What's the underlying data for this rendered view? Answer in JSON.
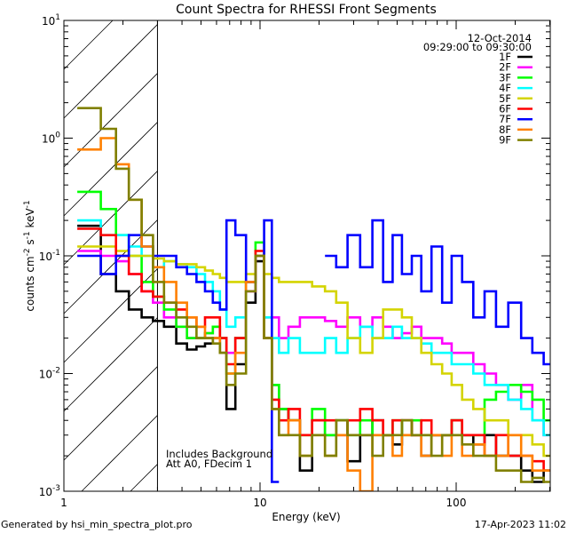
{
  "chart_data": {
    "type": "line",
    "title": "Count Spectra for RHESSI Front Segments",
    "xlabel": "Energy (keV)",
    "ylabel": {
      "base": "counts cm",
      "e1": "-2",
      "mid": " s",
      "e2": "-1",
      "mid2": " keV",
      "e3": "-1"
    },
    "xscale": "log",
    "yscale": "log",
    "xlim": [
      1,
      300
    ],
    "ylim": [
      0.001,
      10
    ],
    "x_ticks": [
      {
        "v": 1,
        "label": "1"
      },
      {
        "v": 10,
        "label": "10"
      },
      {
        "v": 100,
        "label": "100"
      }
    ],
    "y_ticks": [
      {
        "v": 10,
        "base": "10",
        "exp": "1"
      },
      {
        "v": 1,
        "base": "10",
        "exp": "0"
      },
      {
        "v": 0.1,
        "base": "10",
        "exp": "-1"
      },
      {
        "v": 0.01,
        "base": "10",
        "exp": "-2"
      },
      {
        "v": 0.001,
        "base": "10",
        "exp": "-3"
      }
    ],
    "hatched_region_keV": [
      1,
      3
    ],
    "date": "12-Oct-2014",
    "time_range": "09:29:00 to 09:30:00",
    "annotations": [
      "Includes Background",
      "Att A0, FDecim 1"
    ],
    "legend_position": "top-right",
    "x": [
      1.4,
      1.7,
      2.0,
      2.3,
      2.7,
      3.0,
      3.5,
      4,
      4.5,
      5,
      5.5,
      6,
      6.5,
      7,
      8,
      9,
      10,
      11,
      12,
      13,
      15,
      17,
      20,
      23,
      26,
      30,
      35,
      40,
      45,
      50,
      56,
      63,
      70,
      80,
      90,
      100,
      115,
      130,
      150,
      170,
      200,
      230,
      260,
      300
    ],
    "series": [
      {
        "name": "1F",
        "color": "#000000",
        "values": [
          0.18,
          0.07,
          0.05,
          0.035,
          0.03,
          0.028,
          0.025,
          0.018,
          0.016,
          0.017,
          0.018,
          0.02,
          0.015,
          0.005,
          0.012,
          0.04,
          0.09,
          0.02,
          0.008,
          0.005,
          0.004,
          0.0015,
          0.004,
          0.003,
          0.004,
          0.0018,
          0.003,
          0.004,
          0.003,
          0.0025,
          0.004,
          0.003,
          0.002,
          0.003,
          0.003,
          0.004,
          0.003,
          0.0025,
          0.003,
          0.002,
          0.002,
          0.0015,
          0.0012,
          0.0015
        ]
      },
      {
        "name": "2F",
        "color": "#ff00ff",
        "values": [
          0.11,
          0.1,
          0.09,
          0.07,
          0.05,
          0.04,
          0.03,
          0.025,
          0.02,
          0.02,
          0.022,
          0.025,
          0.02,
          0.015,
          0.02,
          0.05,
          0.1,
          0.03,
          0.03,
          0.02,
          0.025,
          0.03,
          0.03,
          0.028,
          0.025,
          0.03,
          0.025,
          0.03,
          0.025,
          0.02,
          0.022,
          0.025,
          0.02,
          0.02,
          0.018,
          0.015,
          0.015,
          0.012,
          0.01,
          0.008,
          0.006,
          0.008,
          0.004,
          0.003
        ]
      },
      {
        "name": "3F",
        "color": "#00ff00",
        "values": [
          0.35,
          0.25,
          0.15,
          0.1,
          0.06,
          0.045,
          0.035,
          0.025,
          0.02,
          0.02,
          0.022,
          0.025,
          0.02,
          0.01,
          0.02,
          0.06,
          0.13,
          0.02,
          0.008,
          0.005,
          0.004,
          0.003,
          0.005,
          0.003,
          0.004,
          0.003,
          0.004,
          0.003,
          0.003,
          0.004,
          0.003,
          0.004,
          0.003,
          0.003,
          0.003,
          0.004,
          0.003,
          0.003,
          0.006,
          0.007,
          0.008,
          0.007,
          0.006,
          0.004
        ]
      },
      {
        "name": "4F",
        "color": "#00ffff",
        "values": [
          0.2,
          0.15,
          0.15,
          0.12,
          0.1,
          0.08,
          0.09,
          0.085,
          0.08,
          0.07,
          0.06,
          0.05,
          0.035,
          0.025,
          0.03,
          0.06,
          0.1,
          0.03,
          0.02,
          0.015,
          0.02,
          0.015,
          0.015,
          0.02,
          0.015,
          0.02,
          0.025,
          0.02,
          0.02,
          0.025,
          0.02,
          0.02,
          0.018,
          0.015,
          0.015,
          0.012,
          0.012,
          0.01,
          0.008,
          0.008,
          0.006,
          0.005,
          0.004,
          0.003
        ]
      },
      {
        "name": "5F",
        "color": "#d4d400",
        "values": [
          0.12,
          0.12,
          0.11,
          0.1,
          0.1,
          0.095,
          0.09,
          0.085,
          0.085,
          0.08,
          0.075,
          0.07,
          0.065,
          0.06,
          0.06,
          0.07,
          0.1,
          0.07,
          0.065,
          0.06,
          0.06,
          0.06,
          0.055,
          0.05,
          0.04,
          0.02,
          0.015,
          0.02,
          0.035,
          0.035,
          0.03,
          0.02,
          0.015,
          0.012,
          0.01,
          0.008,
          0.006,
          0.005,
          0.004,
          0.004,
          0.003,
          0.003,
          0.0025,
          0.002
        ]
      },
      {
        "name": "6F",
        "color": "#ff0000",
        "values": [
          0.17,
          0.15,
          0.1,
          0.07,
          0.05,
          0.045,
          0.04,
          0.035,
          0.03,
          0.025,
          0.03,
          0.03,
          0.02,
          0.012,
          0.02,
          0.06,
          0.11,
          0.02,
          0.006,
          0.004,
          0.005,
          0.003,
          0.004,
          0.004,
          0.003,
          0.004,
          0.005,
          0.004,
          0.003,
          0.004,
          0.004,
          0.003,
          0.004,
          0.003,
          0.003,
          0.004,
          0.003,
          0.003,
          0.002,
          0.003,
          0.002,
          0.002,
          0.0018,
          0.0015
        ]
      },
      {
        "name": "7F",
        "color": "#0000ff",
        "values": [
          0.1,
          0.07,
          0.1,
          0.15,
          0.12,
          0.1,
          0.1,
          0.08,
          0.07,
          0.06,
          0.05,
          0.04,
          0.035,
          0.2,
          0.15,
          0.06,
          0.1,
          0.2,
          0.0012,
          null,
          null,
          null,
          null,
          0.1,
          0.08,
          0.15,
          0.08,
          0.2,
          0.06,
          0.15,
          0.07,
          0.1,
          0.05,
          0.12,
          0.04,
          0.1,
          0.06,
          0.03,
          0.05,
          0.025,
          0.04,
          0.02,
          0.015,
          0.012
        ]
      },
      {
        "name": "8F",
        "color": "#ff8000",
        "values": [
          0.8,
          1.0,
          0.6,
          0.3,
          0.12,
          0.08,
          0.06,
          0.04,
          0.03,
          0.025,
          0.02,
          0.02,
          0.015,
          0.01,
          0.015,
          0.06,
          0.1,
          0.02,
          0.005,
          0.003,
          0.004,
          0.002,
          0.003,
          0.002,
          0.003,
          0.0015,
          0.001,
          0.003,
          0.003,
          0.002,
          0.003,
          0.003,
          0.002,
          0.003,
          0.002,
          0.003,
          0.002,
          0.0025,
          0.002,
          0.002,
          0.003,
          0.002,
          0.0015,
          0.0015
        ]
      },
      {
        "name": "9F",
        "color": "#808000",
        "values": [
          1.8,
          1.2,
          0.55,
          0.3,
          0.15,
          0.06,
          0.04,
          0.03,
          0.025,
          0.02,
          0.02,
          0.018,
          0.015,
          0.008,
          0.01,
          0.05,
          0.1,
          0.02,
          0.005,
          0.003,
          0.003,
          0.002,
          0.003,
          0.002,
          0.004,
          0.003,
          0.003,
          0.002,
          0.003,
          0.003,
          0.004,
          0.003,
          0.003,
          0.002,
          0.003,
          0.003,
          0.0025,
          0.002,
          0.002,
          0.0015,
          0.0015,
          0.0012,
          0.0013,
          0.0012
        ]
      }
    ]
  },
  "footer": {
    "generated_by": "Generated by hsi_min_spectra_plot.pro",
    "timestamp": "17-Apr-2023 11:02"
  }
}
